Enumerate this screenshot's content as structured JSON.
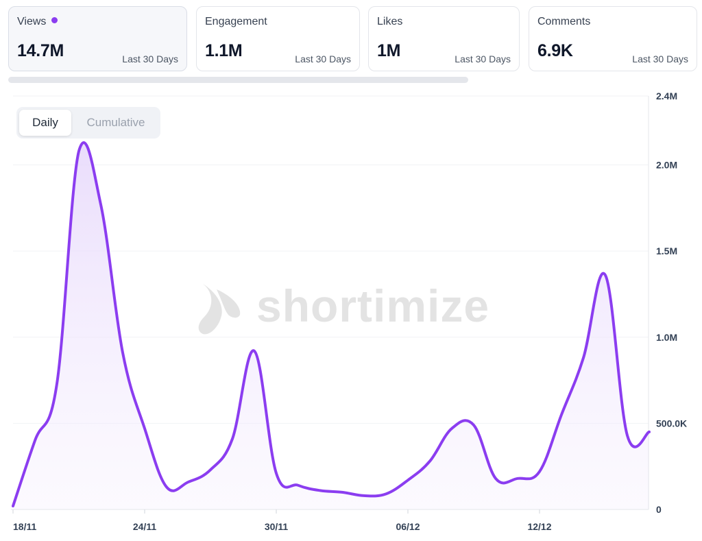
{
  "metrics": [
    {
      "label": "Views",
      "value": "14.7M",
      "period": "Last 30 Days",
      "active": true
    },
    {
      "label": "Engagement",
      "value": "1.1M",
      "period": "Last 30 Days",
      "active": false
    },
    {
      "label": "Likes",
      "value": "1M",
      "period": "Last 30 Days",
      "active": false
    },
    {
      "label": "Comments",
      "value": "6.9K",
      "period": "Last 30 Days",
      "active": false
    }
  ],
  "toggle": {
    "daily_label": "Daily",
    "cumulative_label": "Cumulative",
    "selected": "Daily"
  },
  "watermark": {
    "text": "shortimize"
  },
  "colors": {
    "series": "#8b3df0",
    "fill": "#ede3fc",
    "active_dot": "#8b3df0"
  },
  "chart_data": {
    "type": "area",
    "x_tick_labels": [
      "18/11",
      "24/11",
      "30/11",
      "06/12",
      "12/12"
    ],
    "y_tick_labels": [
      "0",
      "500.0K",
      "1.0M",
      "1.5M",
      "2.0M",
      "2.4M"
    ],
    "y_ticks": [
      0,
      500000,
      1000000,
      1500000,
      2000000,
      2400000
    ],
    "ylim": [
      0,
      2400000
    ],
    "y_axis_side": "right",
    "grid": true,
    "series": [
      {
        "x": [
          "18/11",
          "19/11",
          "20/11",
          "21/11",
          "22/11",
          "23/11",
          "24/11",
          "25/11",
          "26/11",
          "27/11",
          "28/11",
          "29/11",
          "30/11",
          "01/12",
          "02/12",
          "03/12",
          "04/12",
          "05/12",
          "06/12",
          "07/12",
          "08/12",
          "09/12",
          "10/12",
          "11/12",
          "12/12",
          "13/12",
          "14/12",
          "15/12",
          "16/12",
          "17/12"
        ],
        "values": [
          20000,
          400000,
          730000,
          2080000,
          1770000,
          910000,
          470000,
          130000,
          160000,
          230000,
          410000,
          920000,
          210000,
          140000,
          110000,
          100000,
          80000,
          90000,
          170000,
          280000,
          470000,
          490000,
          180000,
          180000,
          220000,
          550000,
          880000,
          1360000,
          430000,
          450000
        ]
      }
    ]
  }
}
